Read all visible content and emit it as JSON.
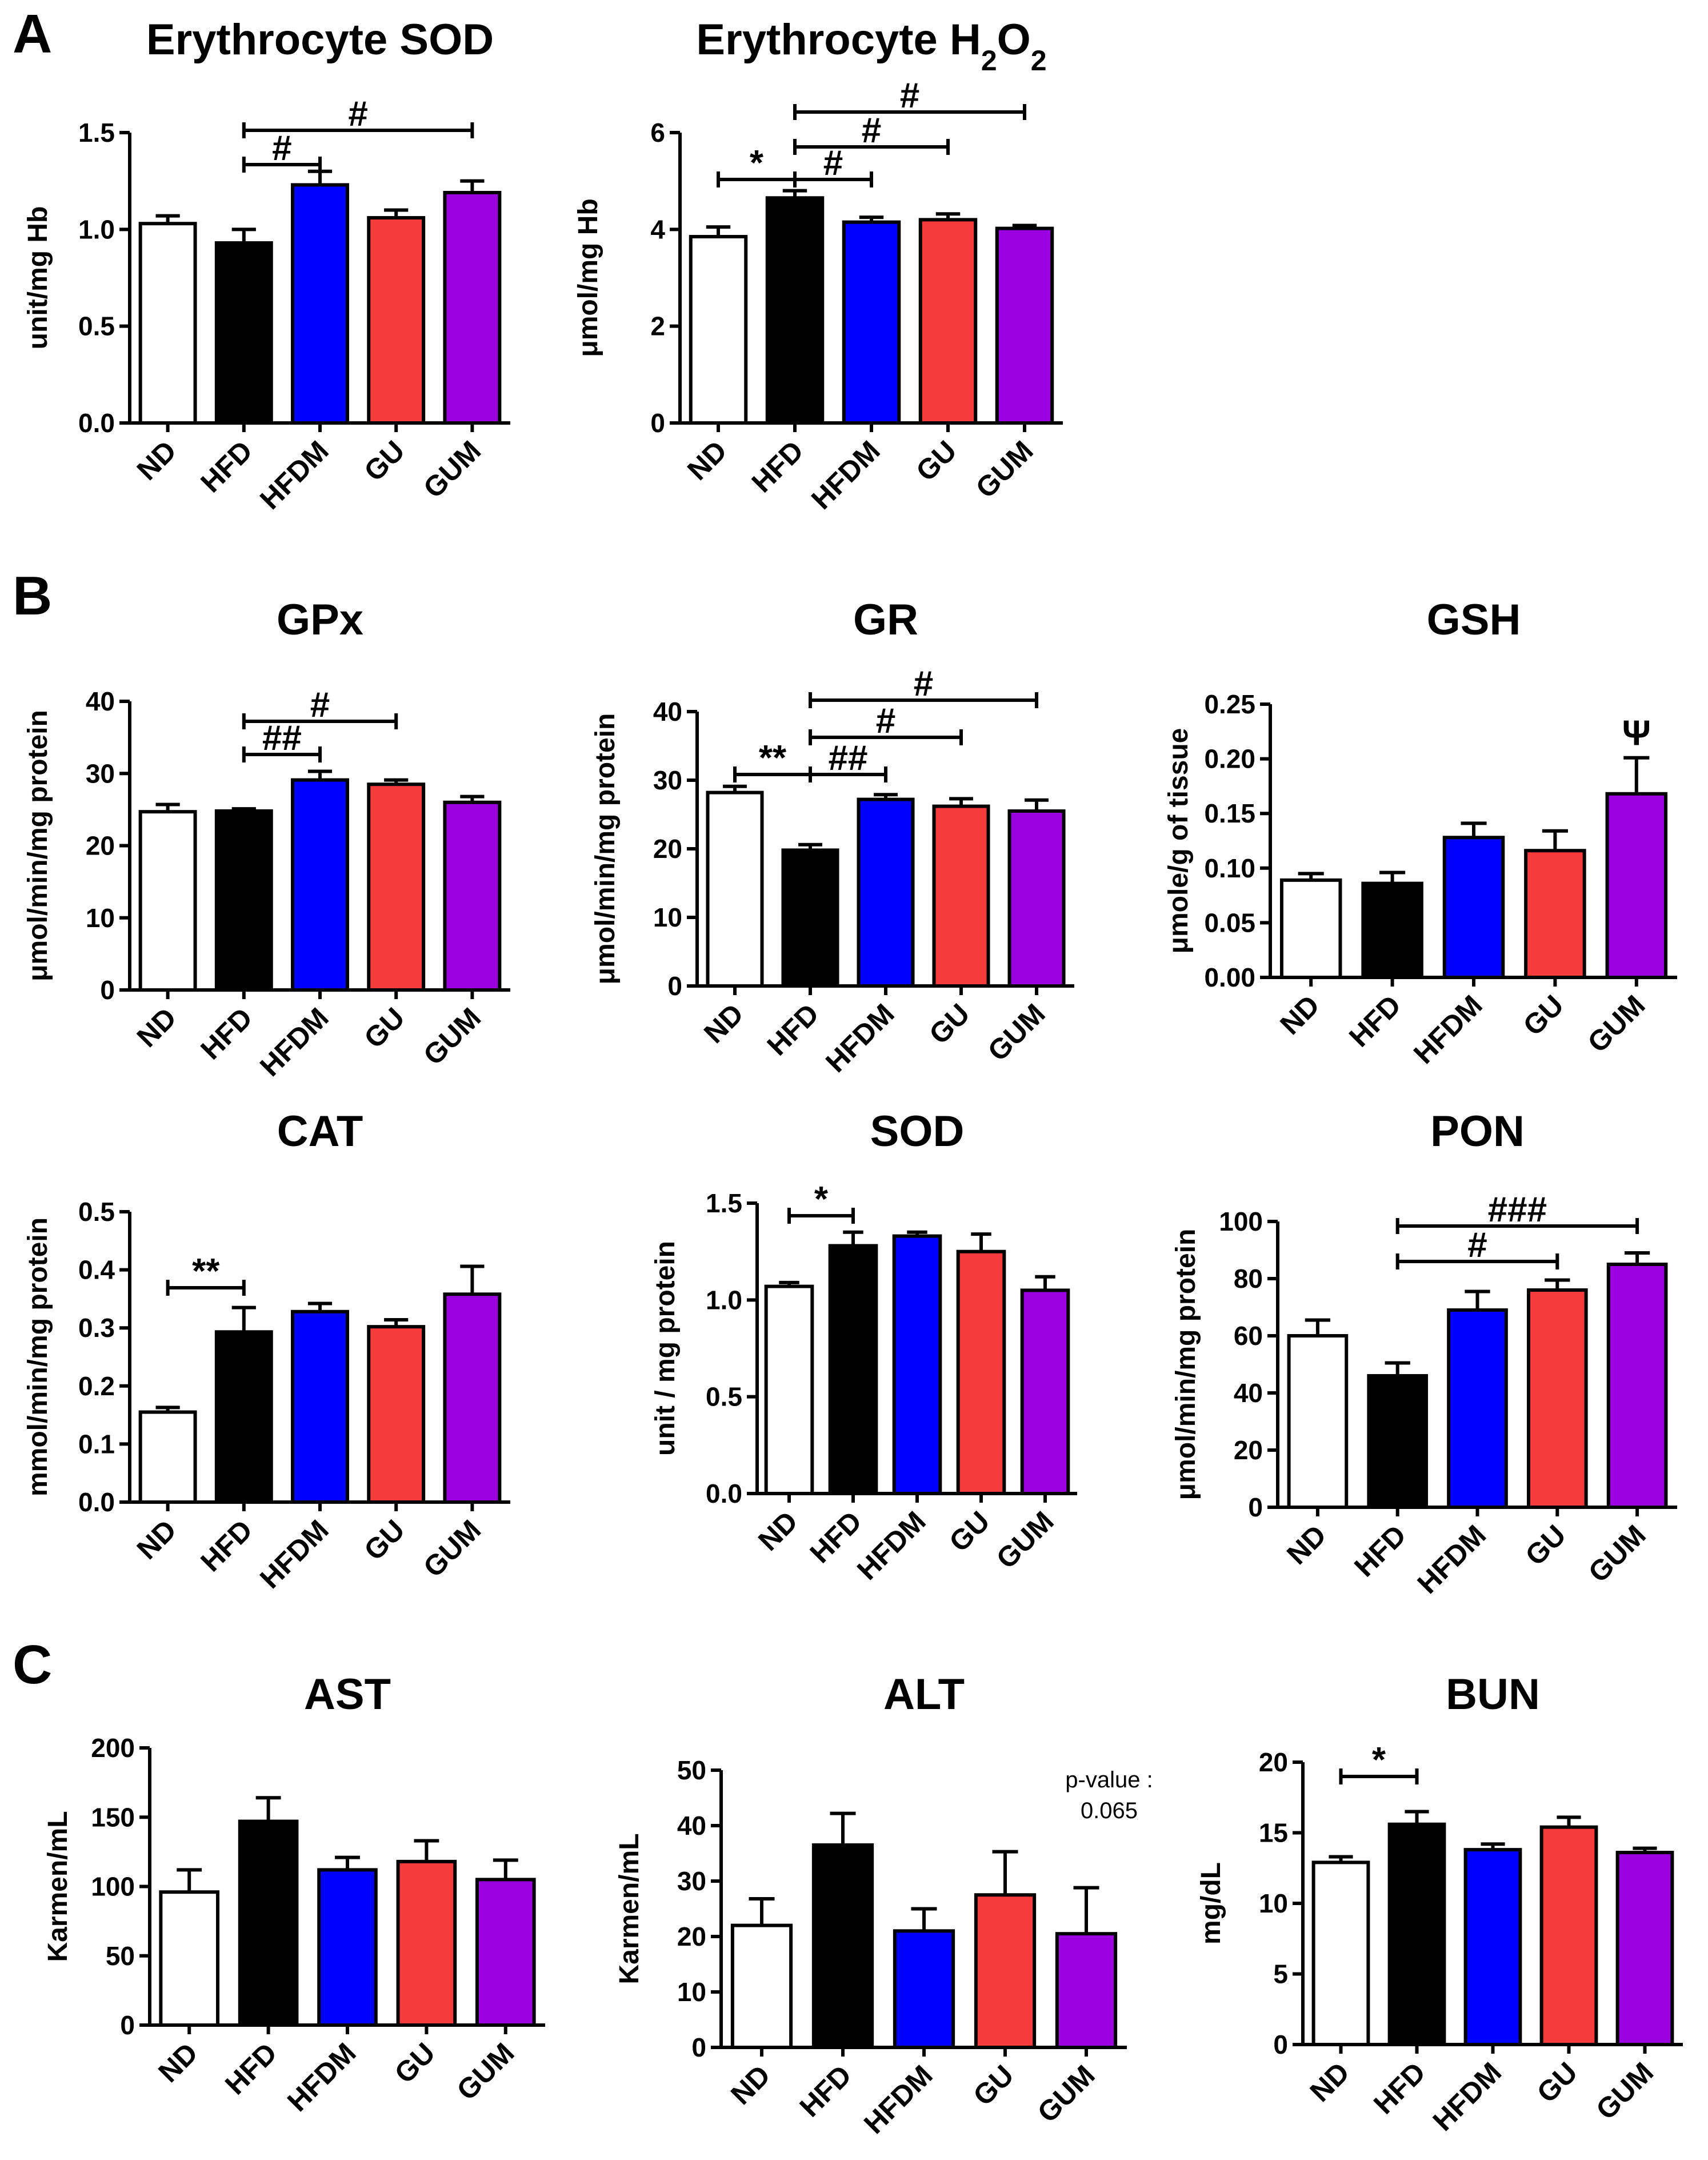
{
  "section_labels": [
    "A",
    "B",
    "C"
  ],
  "colors": {
    "ND": "#ffffff",
    "HFD": "#000000",
    "HFDM": "#0000ff",
    "GU": "#f53b3b",
    "GUM": "#9b00e0"
  },
  "chart_data": [
    {
      "id": "ery_sod",
      "type": "bar",
      "title": "Erythrocyte SOD",
      "section": "A",
      "ylabel": "unit/mg Hb",
      "ylim": [
        0,
        1.5
      ],
      "yticks": [
        "0.0",
        "0.5",
        "1.0",
        "1.5"
      ],
      "categories": [
        "ND",
        "HFD",
        "HFDM",
        "GU",
        "GUM"
      ],
      "values": [
        1.03,
        0.93,
        1.23,
        1.06,
        1.19
      ],
      "errors": [
        0.04,
        0.07,
        0.07,
        0.04,
        0.06
      ],
      "significance": [
        {
          "from": "HFD",
          "to": "HFDM",
          "label": "#"
        },
        {
          "from": "HFD",
          "to": "GUM",
          "label": "#"
        }
      ]
    },
    {
      "id": "ery_h2o2",
      "type": "bar",
      "title": "Erythrocyte H2O2",
      "section": "A",
      "ylabel": "μmol/mg Hb",
      "ylim": [
        0,
        6
      ],
      "yticks": [
        "0",
        "2",
        "4",
        "6"
      ],
      "categories": [
        "ND",
        "HFD",
        "HFDM",
        "GU",
        "GUM"
      ],
      "values": [
        3.85,
        4.65,
        4.15,
        4.2,
        4.02
      ],
      "errors": [
        0.2,
        0.15,
        0.1,
        0.12,
        0.06
      ],
      "significance": [
        {
          "from": "ND",
          "to": "HFD",
          "label": "*"
        },
        {
          "from": "HFD",
          "to": "HFDM",
          "label": "#"
        },
        {
          "from": "HFD",
          "to": "GU",
          "label": "#"
        },
        {
          "from": "HFD",
          "to": "GUM",
          "label": "#"
        }
      ]
    },
    {
      "id": "gpx",
      "type": "bar",
      "title": "GPx",
      "section": "B",
      "ylabel": "μmol/min/mg protein",
      "ylim": [
        0,
        40
      ],
      "yticks": [
        "0",
        "10",
        "20",
        "30",
        "40"
      ],
      "categories": [
        "ND",
        "HFD",
        "HFDM",
        "GU",
        "GUM"
      ],
      "values": [
        24.7,
        24.8,
        29.1,
        28.5,
        26.0
      ],
      "errors": [
        1.0,
        0.3,
        1.2,
        0.6,
        0.8
      ],
      "significance": [
        {
          "from": "HFD",
          "to": "HFDM",
          "label": "##"
        },
        {
          "from": "HFD",
          "to": "GU",
          "label": "#"
        }
      ]
    },
    {
      "id": "gr",
      "type": "bar",
      "title": "GR",
      "section": "B",
      "ylabel": "μmol/min/mg protein",
      "ylim": [
        0,
        40
      ],
      "yticks": [
        "0",
        "10",
        "20",
        "30",
        "40"
      ],
      "categories": [
        "ND",
        "HFD",
        "HFDM",
        "GU",
        "GUM"
      ],
      "values": [
        28.2,
        19.8,
        27.2,
        26.2,
        25.5
      ],
      "errors": [
        0.9,
        0.8,
        0.7,
        1.1,
        1.6
      ],
      "significance": [
        {
          "from": "ND",
          "to": "HFD",
          "label": "**"
        },
        {
          "from": "HFD",
          "to": "HFDM",
          "label": "##"
        },
        {
          "from": "HFD",
          "to": "GU",
          "label": "#"
        },
        {
          "from": "HFD",
          "to": "GUM",
          "label": "#"
        }
      ]
    },
    {
      "id": "gsh",
      "type": "bar",
      "title": "GSH",
      "section": "B",
      "ylabel": "μmole/g of tissue",
      "ylim": [
        0,
        0.25
      ],
      "yticks": [
        "0.00",
        "0.05",
        "0.10",
        "0.15",
        "0.20",
        "0.25"
      ],
      "categories": [
        "ND",
        "HFD",
        "HFDM",
        "GU",
        "GUM"
      ],
      "values": [
        0.089,
        0.086,
        0.128,
        0.116,
        0.168
      ],
      "errors": [
        0.006,
        0.01,
        0.013,
        0.018,
        0.033
      ],
      "significance": [],
      "bar_marks": [
        {
          "category": "GUM",
          "label": "Ψ"
        }
      ]
    },
    {
      "id": "cat",
      "type": "bar",
      "title": "CAT",
      "section": "B",
      "ylabel": "mmol/min/mg protein",
      "ylim": [
        0,
        0.5
      ],
      "yticks": [
        "0.0",
        "0.1",
        "0.2",
        "0.3",
        "0.4",
        "0.5"
      ],
      "categories": [
        "ND",
        "HFD",
        "HFDM",
        "GU",
        "GUM"
      ],
      "values": [
        0.155,
        0.293,
        0.328,
        0.302,
        0.358
      ],
      "errors": [
        0.008,
        0.042,
        0.014,
        0.012,
        0.048
      ],
      "significance": [
        {
          "from": "ND",
          "to": "HFD",
          "label": "**"
        }
      ]
    },
    {
      "id": "sod",
      "type": "bar",
      "title": "SOD",
      "section": "B",
      "ylabel": "unit / mg protein",
      "ylim": [
        0,
        1.5
      ],
      "yticks": [
        "0.0",
        "0.5",
        "1.0",
        "1.5"
      ],
      "categories": [
        "ND",
        "HFD",
        "HFDM",
        "GU",
        "GUM"
      ],
      "values": [
        1.07,
        1.28,
        1.33,
        1.25,
        1.05
      ],
      "errors": [
        0.02,
        0.07,
        0.02,
        0.09,
        0.07
      ],
      "significance": [
        {
          "from": "ND",
          "to": "HFD",
          "label": "*"
        }
      ]
    },
    {
      "id": "pon",
      "type": "bar",
      "title": "PON",
      "section": "B",
      "ylabel": "μmol/min/mg protein",
      "ylim": [
        0,
        100
      ],
      "yticks": [
        "0",
        "20",
        "40",
        "60",
        "80",
        "100"
      ],
      "categories": [
        "ND",
        "HFD",
        "HFDM",
        "GU",
        "GUM"
      ],
      "values": [
        60,
        46,
        69,
        76,
        85
      ],
      "errors": [
        5.5,
        4.5,
        6.5,
        3.5,
        4.0
      ],
      "significance": [
        {
          "from": "HFD",
          "to": "GU",
          "label": "#"
        },
        {
          "from": "HFD",
          "to": "GUM",
          "label": "###"
        }
      ]
    },
    {
      "id": "ast",
      "type": "bar",
      "title": "AST",
      "section": "C",
      "ylabel": "Karmen/mL",
      "ylim": [
        0,
        200
      ],
      "yticks": [
        "0",
        "50",
        "100",
        "150",
        "200"
      ],
      "categories": [
        "ND",
        "HFD",
        "HFDM",
        "GU",
        "GUM"
      ],
      "values": [
        96,
        147,
        112,
        118,
        105
      ],
      "errors": [
        16,
        17,
        9,
        15,
        14
      ],
      "significance": []
    },
    {
      "id": "alt",
      "type": "bar",
      "title": "ALT",
      "section": "C",
      "ylabel": "Karmen/mL",
      "ylim": [
        0,
        50
      ],
      "yticks": [
        "0",
        "10",
        "20",
        "30",
        "40",
        "50"
      ],
      "categories": [
        "ND",
        "HFD",
        "HFDM",
        "GU",
        "GUM"
      ],
      "values": [
        22,
        36.5,
        21,
        27.5,
        20.5
      ],
      "errors": [
        4.8,
        5.7,
        4.0,
        7.8,
        8.3
      ],
      "significance": [],
      "annotation": [
        "p-value :",
        "0.065"
      ]
    },
    {
      "id": "bun",
      "type": "bar",
      "title": "BUN",
      "section": "C",
      "ylabel": "mg/dL",
      "ylim": [
        0,
        20
      ],
      "yticks": [
        "0",
        "5",
        "10",
        "15",
        "20"
      ],
      "categories": [
        "ND",
        "HFD",
        "HFDM",
        "GU",
        "GUM"
      ],
      "values": [
        12.9,
        15.6,
        13.8,
        15.4,
        13.6
      ],
      "errors": [
        0.4,
        0.9,
        0.4,
        0.7,
        0.3
      ],
      "significance": [
        {
          "from": "ND",
          "to": "HFD",
          "label": "*"
        }
      ]
    }
  ]
}
